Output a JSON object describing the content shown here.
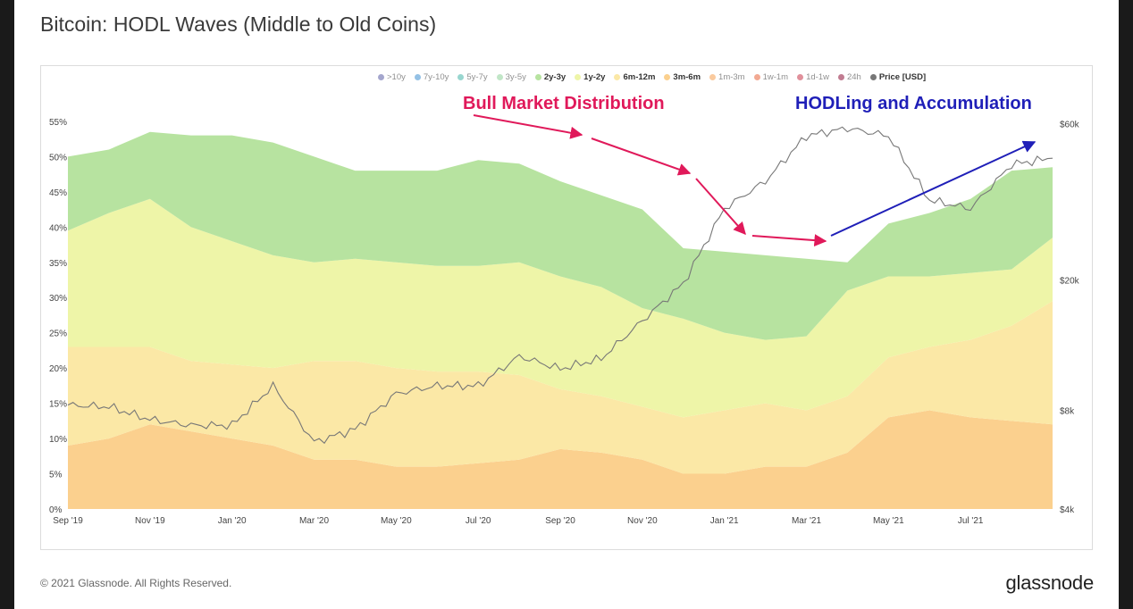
{
  "page": {
    "title": "Bitcoin: HODL Waves (Middle to Old Coins)",
    "footer_copyright": "© 2021 Glassnode. All Rights Reserved.",
    "footer_brand": "glassnode",
    "watermark": "glassnode"
  },
  "legend": [
    {
      "label": ">10y",
      "color": "#5b5ea6",
      "active": false
    },
    {
      "label": "7y-10y",
      "color": "#3d8fd1",
      "active": false
    },
    {
      "label": "5y-7y",
      "color": "#45b5a9",
      "active": false
    },
    {
      "label": "3y-5y",
      "color": "#8fd39a",
      "active": false
    },
    {
      "label": "2y-3y",
      "color": "#b7e3a0",
      "active": true
    },
    {
      "label": "1y-2y",
      "color": "#eef5a8",
      "active": true
    },
    {
      "label": "6m-12m",
      "color": "#fbe8a6",
      "active": true
    },
    {
      "label": "3m-6m",
      "color": "#fbd08e",
      "active": true
    },
    {
      "label": "1m-3m",
      "color": "#f6a04f",
      "active": false
    },
    {
      "label": "1w-1m",
      "color": "#e9643a",
      "active": false
    },
    {
      "label": "1d-1w",
      "color": "#c8364a",
      "active": false
    },
    {
      "label": "24h",
      "color": "#8f1238",
      "active": false
    },
    {
      "label": "Price [USD]",
      "color": "#777777",
      "active": true
    }
  ],
  "annotations": {
    "distribution": {
      "text": "Bull Market Distribution",
      "color": "#e0195a"
    },
    "accumulation": {
      "text": "HODLing and Accumulation",
      "color": "#1f1fb8"
    }
  },
  "chart_data": {
    "type": "area",
    "title": "Bitcoin: HODL Waves (Middle to Old Coins)",
    "x": [
      "2019-09",
      "2019-10",
      "2019-11",
      "2019-12",
      "2020-01",
      "2020-02",
      "2020-03",
      "2020-04",
      "2020-05",
      "2020-06",
      "2020-07",
      "2020-08",
      "2020-09",
      "2020-10",
      "2020-11",
      "2020-12",
      "2021-01",
      "2021-02",
      "2021-03",
      "2021-04",
      "2021-05",
      "2021-06",
      "2021-07",
      "2021-08",
      "2021-09"
    ],
    "x_tick_labels": [
      "Sep '19",
      "Nov '19",
      "Jan '20",
      "Mar '20",
      "May '20",
      "Jul '20",
      "Sep '20",
      "Nov '20",
      "Jan '21",
      "Mar '21",
      "May '21",
      "Jul '21"
    ],
    "y_tick_labels": [
      "0%",
      "5%",
      "10%",
      "15%",
      "20%",
      "25%",
      "30%",
      "35%",
      "40%",
      "45%",
      "50%",
      "55%"
    ],
    "y2_tick_labels": [
      "$4k",
      "$8k",
      "$20k",
      "$60k"
    ],
    "ylim": [
      0,
      56
    ],
    "y2_scale": "log",
    "y2_lim": [
      4000,
      64000
    ],
    "stack_order": [
      "3m-6m",
      "6m-12m",
      "1y-2y",
      "2y-3y"
    ],
    "series": [
      {
        "name": "3m-6m",
        "color": "#fbd08e",
        "values": [
          9,
          10,
          12,
          11,
          10,
          9,
          7,
          7,
          6,
          6,
          6.5,
          7,
          8.5,
          8,
          7,
          5,
          5,
          6,
          6,
          8,
          13,
          14,
          13,
          12.5,
          12
        ]
      },
      {
        "name": "6m-12m",
        "color": "#fbe8a6",
        "values": [
          14,
          13,
          11,
          10,
          10.5,
          11,
          14,
          14,
          14,
          13.5,
          13,
          12,
          8.5,
          8,
          7.5,
          8,
          9,
          9,
          8,
          8,
          8.5,
          9,
          11,
          13.5,
          17.5
        ]
      },
      {
        "name": "1y-2y",
        "color": "#eef5a8",
        "values": [
          16.5,
          19,
          21,
          19,
          17.5,
          16,
          14,
          14.5,
          15,
          15,
          15,
          16,
          16,
          15.5,
          14,
          14,
          11,
          9,
          10.5,
          15,
          11.5,
          10,
          9.5,
          8,
          9
        ]
      },
      {
        "name": "2y-3y",
        "color": "#b7e3a0",
        "values": [
          10.5,
          9,
          9.5,
          13,
          15,
          16,
          15,
          12.5,
          13,
          13.5,
          15,
          14,
          13.5,
          13,
          14,
          10,
          11.5,
          12,
          11,
          4,
          7.5,
          9,
          10.5,
          14,
          10
        ]
      },
      {
        "name": "Price [USD]",
        "color": "#777777",
        "values": [
          8300,
          8200,
          7500,
          7200,
          7200,
          9500,
          6400,
          7000,
          9000,
          9500,
          9500,
          11700,
          10700,
          11500,
          15000,
          19500,
          33000,
          40000,
          55000,
          58000,
          55000,
          35000,
          33000,
          45000,
          47000
        ]
      }
    ]
  }
}
